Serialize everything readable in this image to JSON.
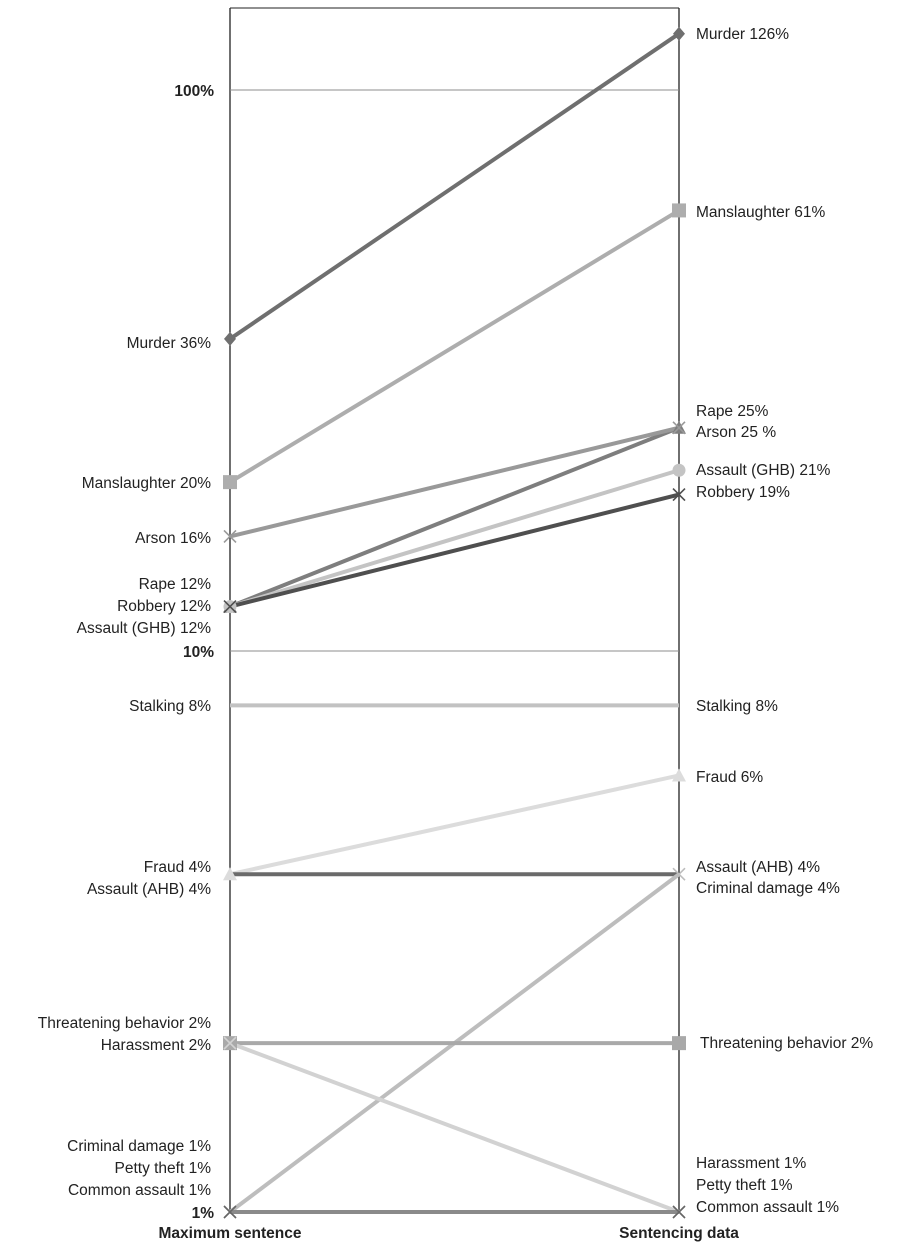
{
  "chart_data": {
    "type": "line",
    "subtype": "slope",
    "y_scale": "log",
    "ylim": [
      "1%",
      "126%"
    ],
    "grid": "horizontal at 10% and 100%",
    "categories": [
      "Maximum sentence",
      "Sentencing data"
    ],
    "ticks": [
      "1%",
      "10%",
      "100%"
    ],
    "colors": {
      "dark": "#5e5e5e",
      "mid_dark": "#7a7a7a",
      "mid": "#979797",
      "light": "#b5b5b5",
      "lighter": "#c9c9c9",
      "lightest": "#dadada"
    },
    "series": [
      {
        "name": "Murder",
        "values": [
          36,
          126
        ],
        "left_label": "Murder 36%",
        "right_label": "Murder 126%",
        "color": "#6f6f6f",
        "marker": "diamond"
      },
      {
        "name": "Manslaughter",
        "values": [
          20,
          61
        ],
        "left_label": "Manslaughter 20%",
        "right_label": "Manslaughter 61%",
        "color": "#adadad",
        "marker": "square"
      },
      {
        "name": "Rape",
        "values": [
          12,
          25
        ],
        "left_label": "Rape 12%",
        "right_label": "Rape 25%",
        "color": "#7e7e7e",
        "marker": "triangle"
      },
      {
        "name": "Arson",
        "values": [
          16,
          25
        ],
        "left_label": "Arson 16%",
        "right_label": "Arson 25 %",
        "color": "#999999",
        "marker": "x"
      },
      {
        "name": "Assault (GHB)",
        "values": [
          12,
          21
        ],
        "left_label": "Assault (GHB) 12%",
        "right_label": "Assault (GHB) 21%",
        "color": "#c4c4c4",
        "marker": "circle"
      },
      {
        "name": "Robbery",
        "values": [
          12,
          19
        ],
        "left_label": "Robbery 12%",
        "right_label": "Robbery 19%",
        "color": "#4f4f4f",
        "marker": "x"
      },
      {
        "name": "Stalking",
        "values": [
          8,
          8
        ],
        "left_label": "Stalking 8%",
        "right_label": "Stalking 8%",
        "color": "#c2c2c2",
        "marker": "none"
      },
      {
        "name": "Fraud",
        "values": [
          4,
          6
        ],
        "left_label": "Fraud 4%",
        "right_label": "Fraud 6%",
        "color": "#dcdcdc",
        "marker": "triangle"
      },
      {
        "name": "Assault (AHB)",
        "values": [
          4,
          4
        ],
        "left_label": "Assault (AHB) 4%",
        "right_label": "Assault (AHB) 4%",
        "color": "#6a6a6a",
        "marker": "none"
      },
      {
        "name": "Criminal damage",
        "values": [
          1,
          4
        ],
        "left_label": "Criminal damage 1%",
        "right_label": "Criminal damage 4%",
        "color": "#bdbdbd",
        "marker": "x"
      },
      {
        "name": "Threatening behavior",
        "values": [
          2,
          2
        ],
        "left_label": "Threatening behavior 2%",
        "right_label": "Threatening behavior 2%",
        "color": "#a9a9a9",
        "marker": "square"
      },
      {
        "name": "Harassment",
        "values": [
          2,
          1
        ],
        "left_label": "Harassment 2%",
        "right_label": "Harassment 1%",
        "color": "#d2d2d2",
        "marker": "x"
      },
      {
        "name": "Petty theft",
        "values": [
          1,
          1
        ],
        "left_label": "Petty theft 1%",
        "right_label": "Petty theft 1%",
        "color": "#666666",
        "marker": "x"
      },
      {
        "name": "Common assault",
        "values": [
          1,
          1
        ],
        "left_label": "Common assault 1%",
        "right_label": "Common assault 1%",
        "color": "#8a8a8a",
        "marker": "none"
      }
    ]
  }
}
